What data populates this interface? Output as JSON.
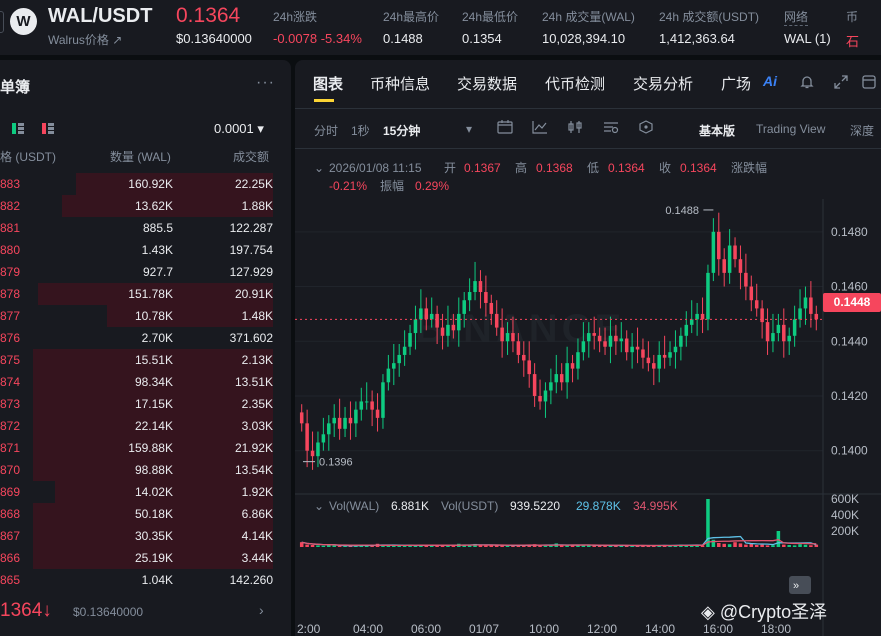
{
  "header": {
    "logo_letter": "W",
    "pair": "WAL/USDT",
    "subtitle": "Walrus价格 ↗",
    "last_price": "0.1364",
    "last_price_usd": "$0.13640000",
    "stats": [
      {
        "label": "24h涨跌",
        "value": "-0.0078 -5.34%",
        "negative": true
      },
      {
        "label": "24h最高价",
        "value": "0.1488"
      },
      {
        "label": "24h最低价",
        "value": "0.1354"
      },
      {
        "label": "24h 成交量(WAL)",
        "value": "10,028,394.10"
      },
      {
        "label": "24h 成交额(USDT)",
        "value": "1,412,363.64"
      },
      {
        "label": "网络",
        "value": "WAL (1)"
      },
      {
        "label": "币",
        "value": "石"
      }
    ]
  },
  "orderbook": {
    "title": "单簿",
    "more": "···",
    "precision": "0.0001 ▾",
    "columns": {
      "price": "格 (USDT)",
      "qty": "数量 (WAL)",
      "total": "成交额"
    },
    "asks": [
      {
        "price": "883",
        "qty": "160.92K",
        "total": "22.25K",
        "depth": 0.82
      },
      {
        "price": "882",
        "qty": "13.62K",
        "total": "1.88K",
        "depth": 0.88
      },
      {
        "price": "881",
        "qty": "885.5",
        "total": "122.287",
        "depth": 0.0
      },
      {
        "price": "880",
        "qty": "1.43K",
        "total": "197.754",
        "depth": 0.0
      },
      {
        "price": "879",
        "qty": "927.7",
        "total": "127.929",
        "depth": 0.0
      },
      {
        "price": "878",
        "qty": "151.78K",
        "total": "20.91K",
        "depth": 0.98
      },
      {
        "price": "877",
        "qty": "10.78K",
        "total": "1.48K",
        "depth": 0.69
      },
      {
        "price": "876",
        "qty": "2.70K",
        "total": "371.602",
        "depth": 0.0
      },
      {
        "price": "875",
        "qty": "15.51K",
        "total": "2.13K",
        "depth": 1.0
      },
      {
        "price": "874",
        "qty": "98.34K",
        "total": "13.51K",
        "depth": 1.0
      },
      {
        "price": "873",
        "qty": "17.15K",
        "total": "2.35K",
        "depth": 1.0
      },
      {
        "price": "872",
        "qty": "22.14K",
        "total": "3.03K",
        "depth": 1.0
      },
      {
        "price": "871",
        "qty": "159.88K",
        "total": "21.92K",
        "depth": 1.0
      },
      {
        "price": "870",
        "qty": "98.88K",
        "total": "13.54K",
        "depth": 1.0
      },
      {
        "price": "869",
        "qty": "14.02K",
        "total": "1.92K",
        "depth": 0.91
      },
      {
        "price": "868",
        "qty": "50.18K",
        "total": "6.86K",
        "depth": 1.0
      },
      {
        "price": "867",
        "qty": "30.35K",
        "total": "4.14K",
        "depth": 1.0
      },
      {
        "price": "866",
        "qty": "25.19K",
        "total": "3.44K",
        "depth": 1.0
      },
      {
        "price": "865",
        "qty": "1.04K",
        "total": "142.260",
        "depth": 0.0
      }
    ],
    "mid_price": "1364↓",
    "mid_price_usd": "$0.13640000",
    "chevron": "›"
  },
  "chart_panel": {
    "tabs": [
      "图表",
      "币种信息",
      "交易数据",
      "代币检测",
      "交易分析",
      "广场"
    ],
    "tab_ai": "Ai",
    "toolbar": {
      "intervals": [
        "分时",
        "1秒",
        "15分钟"
      ],
      "interval_dropdown": "▾",
      "views": [
        "基本版",
        "Trading View",
        "深度"
      ]
    },
    "ohlc": {
      "date": "2026/01/08 11:15",
      "open_label": "开",
      "open": "0.1367",
      "high_label": "高",
      "high": "0.1368",
      "low_label": "低",
      "low": "0.1364",
      "close_label": "收",
      "close": "0.1364",
      "change_label": "涨跌幅",
      "change": "-0.21%",
      "amp_label": "振幅",
      "amp": "0.29%"
    },
    "price_tag": "0.1448",
    "watermark": "BINANCE",
    "vol": {
      "label_wal": "Vol(WAL)",
      "value_wal": "6.881K",
      "label_usdt": "Vol(USDT)",
      "value_usdt": "939.5220",
      "ma1": "29.878K",
      "ma2": "34.995K"
    }
  },
  "chart_data": {
    "type": "candlestick",
    "price_axis": {
      "ticks": [
        "0.1480",
        "0.1460",
        "0.1440",
        "0.1420",
        "0.1400"
      ],
      "ylim": [
        0.1386,
        0.1492
      ]
    },
    "volume_axis": {
      "ticks": [
        "600K",
        "400K",
        "200K"
      ],
      "ylim": [
        0,
        600000
      ]
    },
    "time_ticks": [
      "2:00",
      "04:00",
      "06:00",
      "01/07",
      "10:00",
      "12:00",
      "14:00",
      "16:00",
      "18:00"
    ],
    "high_marker": "0.1488",
    "low_marker": "0.1396",
    "colors": {
      "up": "#0ecb81",
      "down": "#f6465d",
      "ma_vol_1": "#5ec2e8",
      "ma_vol_2": "#e05670"
    },
    "close": [
      0.141,
      0.14,
      0.1398,
      0.1403,
      0.1406,
      0.141,
      0.1412,
      0.1408,
      0.1412,
      0.141,
      0.1415,
      0.1418,
      0.1418,
      0.1415,
      0.1412,
      0.1425,
      0.143,
      0.1432,
      0.1435,
      0.1438,
      0.1443,
      0.1448,
      0.1452,
      0.1448,
      0.145,
      0.1445,
      0.1442,
      0.1446,
      0.1444,
      0.145,
      0.1455,
      0.1458,
      0.1462,
      0.1458,
      0.1454,
      0.145,
      0.1445,
      0.144,
      0.1443,
      0.144,
      0.1435,
      0.1433,
      0.1428,
      0.142,
      0.1418,
      0.1422,
      0.1425,
      0.1428,
      0.1425,
      0.1432,
      0.143,
      0.1436,
      0.144,
      0.1443,
      0.1442,
      0.144,
      0.1438,
      0.1442,
      0.144,
      0.1441,
      0.1436,
      0.1438,
      0.1437,
      0.1434,
      0.1432,
      0.143,
      0.1435,
      0.1434,
      0.1436,
      0.1438,
      0.1442,
      0.1446,
      0.1448,
      0.145,
      0.1448,
      0.1465,
      0.148,
      0.147,
      0.1465,
      0.1475,
      0.147,
      0.1465,
      0.146,
      0.1455,
      0.1452,
      0.1447,
      0.144,
      0.1443,
      0.1446,
      0.144,
      0.1442,
      0.1448,
      0.1452,
      0.1456,
      0.145,
      0.1448
    ],
    "volume_k": [
      60,
      30,
      25,
      20,
      15,
      22,
      18,
      12,
      14,
      16,
      20,
      30,
      25,
      18,
      40,
      22,
      20,
      15,
      18,
      20,
      25,
      18,
      30,
      20,
      18,
      24,
      30,
      15,
      20,
      40,
      28,
      20,
      38,
      22,
      18,
      20,
      25,
      18,
      14,
      20,
      28,
      22,
      30,
      35,
      18,
      15,
      20,
      45,
      22,
      18,
      30,
      20,
      18,
      25,
      20,
      18,
      15,
      20,
      22,
      16,
      18,
      20,
      15,
      18,
      22,
      20,
      15,
      25,
      18,
      20,
      30,
      22,
      28,
      25,
      18,
      600,
      90,
      50,
      40,
      35,
      60,
      45,
      30,
      40,
      25,
      30,
      20,
      22,
      200,
      30,
      25,
      20,
      35,
      28,
      22,
      30
    ]
  }
}
